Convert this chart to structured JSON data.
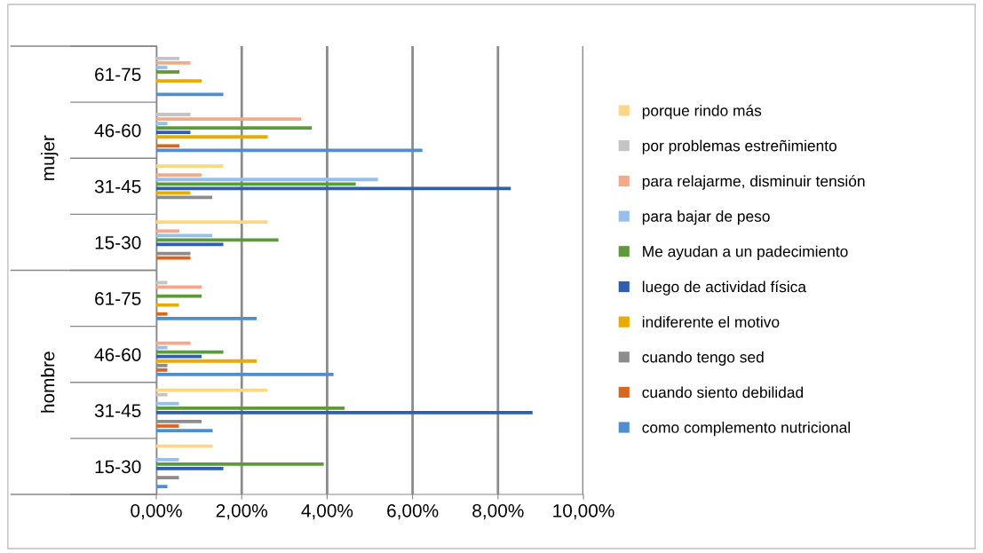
{
  "chart_data": {
    "type": "bar",
    "orientation": "horizontal",
    "categories": [
      "61-75",
      "46-60",
      "31-45",
      "15-30",
      "61-75",
      "46-60",
      "31-45",
      "15-30"
    ],
    "annotations": [
      "mujer",
      "hombre"
    ],
    "series": [
      {
        "name": "como complemento nutricional",
        "color": "#4f8fcf",
        "values": [
          1.57,
          6.23,
          0,
          0,
          2.35,
          4.15,
          1.32,
          0.26
        ]
      },
      {
        "name": "cuando siento debilidad",
        "color": "#d8661c",
        "values": [
          0,
          0.54,
          0,
          0.8,
          0.26,
          0.26,
          0.53,
          0
        ]
      },
      {
        "name": "cuando tengo sed",
        "color": "#8c8c8c",
        "values": [
          0,
          0,
          1.31,
          0.8,
          0,
          0.26,
          1.06,
          0.53
        ]
      },
      {
        "name": "indiferente el motivo",
        "color": "#e8ac00",
        "values": [
          1.06,
          2.61,
          0.8,
          0,
          0.53,
          2.35,
          0,
          0
        ]
      },
      {
        "name": "luego de actividad física",
        "color": "#2f5eae",
        "values": [
          0,
          0.8,
          8.3,
          1.57,
          0,
          1.06,
          8.81,
          1.57
        ]
      },
      {
        "name": "Me ayudan a un padecimiento",
        "color": "#5c9a3a",
        "values": [
          0.54,
          3.64,
          4.67,
          2.86,
          1.06,
          1.57,
          4.41,
          3.92
        ]
      },
      {
        "name": "para bajar de peso",
        "color": "#97bfea",
        "values": [
          0.26,
          0.26,
          5.19,
          1.31,
          0,
          0.26,
          0.53,
          0.53
        ]
      },
      {
        "name": "para relajarme, disminuir tensión",
        "color": "#f4a98a",
        "values": [
          0.8,
          3.39,
          1.06,
          0.54,
          1.06,
          0.8,
          0,
          0
        ]
      },
      {
        "name": "por problemas estreñimiento",
        "color": "#c4c4c4",
        "values": [
          0.54,
          0.8,
          0,
          0,
          0.26,
          0,
          0.26,
          0
        ]
      },
      {
        "name": "porque rindo más",
        "color": "#fdd68a",
        "values": [
          0,
          0,
          1.57,
          2.6,
          0,
          0,
          2.6,
          1.32
        ]
      }
    ],
    "xlim": [
      0,
      10
    ],
    "xticks": [
      {
        "value": 0,
        "label": "0,00%"
      },
      {
        "value": 2,
        "label": "2,00%"
      },
      {
        "value": 4,
        "label": "4,00%"
      },
      {
        "value": 6,
        "label": "6,00%"
      },
      {
        "value": 8,
        "label": "8,00%"
      },
      {
        "value": 10,
        "label": "10,00%"
      }
    ],
    "grid": "x",
    "legend": "right"
  }
}
